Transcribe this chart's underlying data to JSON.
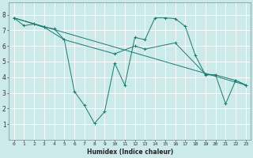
{
  "xlabel": "Humidex (Indice chaleur)",
  "bg_color": "#cceaea",
  "grid_color": "#ffffff",
  "line_color": "#1a7a6e",
  "xlim": [
    -0.5,
    23.5
  ],
  "ylim": [
    0,
    8.8
  ],
  "xticks": [
    0,
    1,
    2,
    3,
    4,
    5,
    6,
    7,
    8,
    9,
    10,
    11,
    12,
    13,
    14,
    15,
    16,
    17,
    18,
    19,
    20,
    21,
    22,
    23
  ],
  "yticks": [
    1,
    2,
    3,
    4,
    5,
    6,
    7,
    8
  ],
  "line1_x": [
    0,
    1,
    2,
    3,
    4,
    5,
    6,
    7,
    8,
    9,
    10,
    11,
    12,
    13,
    14,
    15,
    16,
    17,
    18,
    19,
    20,
    21,
    22,
    23
  ],
  "line1_y": [
    7.8,
    7.3,
    7.4,
    7.2,
    7.1,
    6.4,
    3.1,
    2.2,
    1.05,
    1.8,
    4.9,
    3.5,
    6.55,
    6.4,
    7.8,
    7.8,
    7.75,
    7.25,
    5.4,
    4.15,
    4.15,
    2.3,
    3.8,
    3.5
  ],
  "line2_x": [
    0,
    23
  ],
  "line2_y": [
    7.8,
    3.5
  ],
  "line3_x": [
    0,
    2,
    3,
    5,
    10,
    12,
    13,
    16,
    19,
    20,
    22,
    23
  ],
  "line3_y": [
    7.8,
    7.4,
    7.2,
    6.4,
    5.5,
    6.0,
    5.8,
    6.2,
    4.2,
    4.15,
    3.8,
    3.5
  ]
}
